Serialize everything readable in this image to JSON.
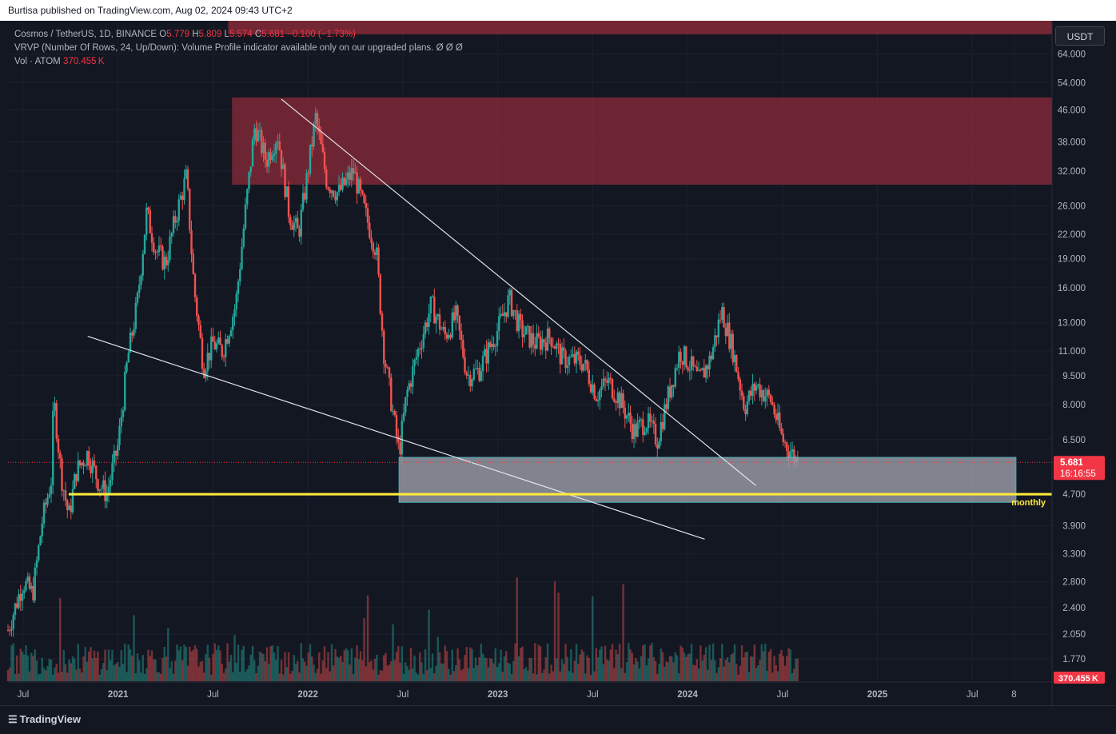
{
  "publisher_line": "Burtisa published on TradingView.com, Aug 02, 2024 09:43 UTC+2",
  "legend": {
    "symbol": "Cosmos / TetherUS, 1D, BINANCE",
    "o_label": "O",
    "o_value": "5.779",
    "h_label": "H",
    "h_value": "5.809",
    "l_label": "L",
    "l_value": "5.574",
    "c_label": "C",
    "c_value": "5.681",
    "change": "−0.100 (−1.73%)",
    "vrvp": "VRVP (Number Of Rows, 24, Up/Down): Volume Profile indicator available only on our upgraded plans.",
    "vrvp_icons": "Ø  Ø  Ø",
    "vol_label": "Vol · ATOM",
    "vol_value": "370.455 K"
  },
  "currency_button": "USDT",
  "branding": "TradingView",
  "colors": {
    "background": "#131722",
    "up": "#26a69a",
    "down": "#ef5350",
    "resistance_zone": "#8c2b3a",
    "support_zone": "#9598a1",
    "monthly_line": "#ffeb3b",
    "price_tag": "#f23645",
    "trendline": "#e0e3eb"
  },
  "chart_data": {
    "type": "candlestick",
    "title": "Cosmos / TetherUS, 1D, BINANCE",
    "y_scale": "log",
    "ylim": [
      1.55,
      78
    ],
    "y_ticks": [
      64,
      54,
      46,
      38,
      32,
      26,
      22,
      19,
      16,
      13,
      11,
      9.5,
      8,
      6.5,
      4.7,
      3.9,
      3.3,
      2.8,
      2.4,
      2.05,
      1.77
    ],
    "y_tick_labels": [
      "64.000",
      "54.000",
      "46.000",
      "38.000",
      "32.000",
      "26.000",
      "22.000",
      "19.000",
      "16.000",
      "13.000",
      "11.000",
      "9.500",
      "8.000",
      "6.500",
      "4.700",
      "3.900",
      "3.300",
      "2.800",
      "2.400",
      "2.050",
      "1.770"
    ],
    "x_range": [
      2020.42,
      2025.92
    ],
    "x_ticks": [
      {
        "t": 2020.5,
        "label": "Jul"
      },
      {
        "t": 2021.0,
        "label": "2021"
      },
      {
        "t": 2021.5,
        "label": "Jul"
      },
      {
        "t": 2022.0,
        "label": "2022"
      },
      {
        "t": 2022.5,
        "label": "Jul"
      },
      {
        "t": 2023.0,
        "label": "2023"
      },
      {
        "t": 2023.5,
        "label": "Jul"
      },
      {
        "t": 2024.0,
        "label": "2024"
      },
      {
        "t": 2024.5,
        "label": "Jul"
      },
      {
        "t": 2025.0,
        "label": "2025"
      },
      {
        "t": 2025.5,
        "label": "Jul"
      },
      {
        "t": 2025.72,
        "label": "8"
      }
    ],
    "price_path": [
      [
        2020.42,
        2.1
      ],
      [
        2020.5,
        2.8
      ],
      [
        2020.55,
        2.6
      ],
      [
        2020.6,
        4.0
      ],
      [
        2020.65,
        5.2
      ],
      [
        2020.66,
        8.4
      ],
      [
        2020.7,
        5.3
      ],
      [
        2020.74,
        4.1
      ],
      [
        2020.78,
        5.4
      ],
      [
        2020.84,
        6.0
      ],
      [
        2020.9,
        5.0
      ],
      [
        2020.94,
        4.7
      ],
      [
        2021.0,
        6.3
      ],
      [
        2021.05,
        10.5
      ],
      [
        2021.1,
        14.5
      ],
      [
        2021.15,
        25.0
      ],
      [
        2021.2,
        20.0
      ],
      [
        2021.25,
        18.5
      ],
      [
        2021.3,
        24.0
      ],
      [
        2021.36,
        31.0
      ],
      [
        2021.4,
        16.0
      ],
      [
        2021.45,
        10.0
      ],
      [
        2021.5,
        11.5
      ],
      [
        2021.55,
        11.0
      ],
      [
        2021.62,
        14.5
      ],
      [
        2021.67,
        25.0
      ],
      [
        2021.72,
        42.0
      ],
      [
        2021.78,
        34.0
      ],
      [
        2021.84,
        40.0
      ],
      [
        2021.9,
        25.0
      ],
      [
        2021.95,
        22.0
      ],
      [
        2022.0,
        32.0
      ],
      [
        2022.04,
        44.0
      ],
      [
        2022.1,
        30.0
      ],
      [
        2022.16,
        28.0
      ],
      [
        2022.24,
        32.0
      ],
      [
        2022.3,
        25.0
      ],
      [
        2022.36,
        20.0
      ],
      [
        2022.4,
        11.0
      ],
      [
        2022.45,
        7.5
      ],
      [
        2022.48,
        6.0
      ],
      [
        2022.52,
        8.5
      ],
      [
        2022.58,
        11.0
      ],
      [
        2022.65,
        14.5
      ],
      [
        2022.72,
        12.0
      ],
      [
        2022.78,
        13.5
      ],
      [
        2022.84,
        9.5
      ],
      [
        2022.9,
        9.8
      ],
      [
        2023.0,
        12.5
      ],
      [
        2023.06,
        15.0
      ],
      [
        2023.12,
        12.5
      ],
      [
        2023.2,
        11.5
      ],
      [
        2023.28,
        12.0
      ],
      [
        2023.34,
        10.5
      ],
      [
        2023.45,
        10.3
      ],
      [
        2023.52,
        8.5
      ],
      [
        2023.58,
        9.2
      ],
      [
        2023.64,
        8.3
      ],
      [
        2023.72,
        6.8
      ],
      [
        2023.78,
        7.3
      ],
      [
        2023.84,
        6.5
      ],
      [
        2023.9,
        8.5
      ],
      [
        2023.96,
        11.0
      ],
      [
        2024.02,
        10.0
      ],
      [
        2024.06,
        9.2
      ],
      [
        2024.12,
        10.5
      ],
      [
        2024.18,
        14.0
      ],
      [
        2024.24,
        11.0
      ],
      [
        2024.3,
        7.9
      ],
      [
        2024.36,
        9.0
      ],
      [
        2024.44,
        8.2
      ],
      [
        2024.5,
        6.5
      ],
      [
        2024.54,
        6.1
      ],
      [
        2024.58,
        5.68
      ]
    ],
    "last_close": 5.681,
    "last_close_label": "5.681",
    "countdown": "16:16:55",
    "volume_label": "370.455 K",
    "annotations": {
      "resistance_zone": {
        "t_from": 2021.6,
        "t_to": 2025.92,
        "price_from": 29.5,
        "price_to": 49.5
      },
      "top_zone": {
        "t_from": 2021.58,
        "t_to": 2025.92,
        "price_from": 72.0,
        "price_to": 80.0
      },
      "support_zone": {
        "t_from": 2022.48,
        "t_to": 2025.73,
        "price_from": 4.48,
        "price_to": 5.85
      },
      "monthly_line": {
        "price": 4.7,
        "t_from": 2020.74,
        "t_to": 2025.92,
        "label": "monthly"
      },
      "trendline_upper": {
        "t_from": 2021.86,
        "t_to": 2024.36,
        "price_from": 49.0,
        "price_to": 4.95
      },
      "trendline_lower": {
        "t_from": 2020.84,
        "t_to": 2024.09,
        "price_from": 12.0,
        "price_to": 3.6
      }
    }
  }
}
